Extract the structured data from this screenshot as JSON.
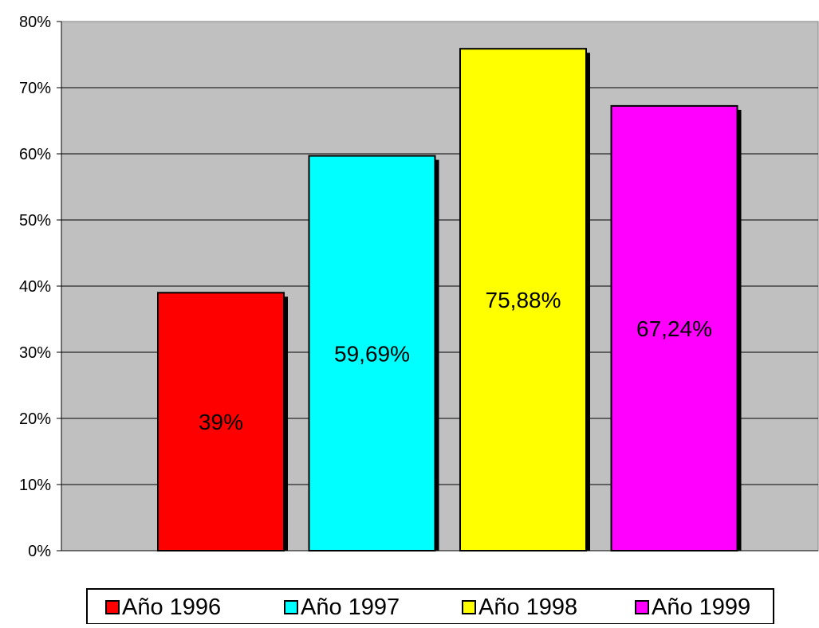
{
  "chart_data": {
    "type": "bar",
    "categories": [
      "Año 1996",
      "Año 1997",
      "Año 1998",
      "Año 1999"
    ],
    "values": [
      39,
      59.69,
      75.88,
      67.24
    ],
    "value_labels": [
      "39%",
      "59,69%",
      "75,88%",
      "67,24%"
    ],
    "colors": [
      "#ff0000",
      "#00ffff",
      "#ffff00",
      "#ff00ff"
    ],
    "yticks": [
      "0%",
      "10%",
      "20%",
      "30%",
      "40%",
      "50%",
      "60%",
      "70%",
      "80%"
    ],
    "ylim": [
      0,
      80
    ],
    "grid": true,
    "plot_background": "#c0c0c0",
    "legend": {
      "position": "bottom",
      "entries": [
        "Año 1996",
        "Año 1997",
        "Año 1998",
        "Año 1999"
      ]
    }
  }
}
